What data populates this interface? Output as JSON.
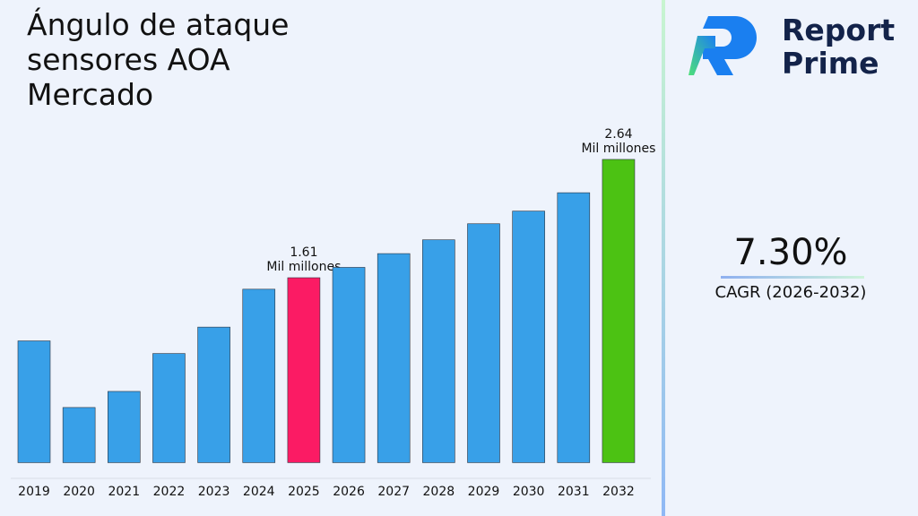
{
  "chart_data": {
    "type": "bar",
    "title": "Ángulo de ataque sensores AOA Mercado",
    "categories": [
      "2019",
      "2020",
      "2021",
      "2022",
      "2023",
      "2024",
      "2025",
      "2026",
      "2027",
      "2028",
      "2029",
      "2030",
      "2031",
      "2032"
    ],
    "values": [
      1.06,
      0.48,
      0.62,
      0.95,
      1.18,
      1.51,
      1.61,
      1.7,
      1.82,
      1.94,
      2.08,
      2.19,
      2.35,
      2.64
    ],
    "value_labels": [
      null,
      null,
      null,
      null,
      null,
      null,
      "1.61\nMil millones",
      null,
      null,
      null,
      null,
      null,
      null,
      "2.64\nMil millones"
    ],
    "colors": [
      "#38a0e8",
      "#38a0e8",
      "#38a0e8",
      "#38a0e8",
      "#38a0e8",
      "#38a0e8",
      "#fb1b64",
      "#38a0e8",
      "#38a0e8",
      "#38a0e8",
      "#38a0e8",
      "#38a0e8",
      "#38a0e8",
      "#4cc213"
    ],
    "ylim": [
      -0.137,
      2.858
    ]
  },
  "panel": {
    "logo_line1": "Report",
    "logo_line2": "Prime",
    "cagr": "7.30%",
    "cagr_label": "CAGR (2026-2032)"
  }
}
